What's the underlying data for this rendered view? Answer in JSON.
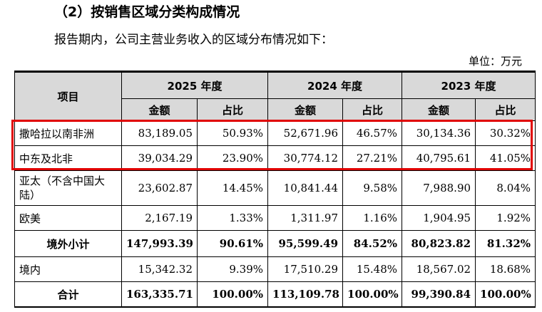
{
  "heading": "（2）按销售区域分类构成情况",
  "intro": "报告期内，公司主营业务收入的区域分布情况如下：",
  "unit": "单位：万元",
  "table": {
    "item_header": "项目",
    "years": [
      "2025 年度",
      "2024 年度",
      "2023 年度"
    ],
    "amount_label": "金额",
    "ratio_label": "占比",
    "rows": [
      {
        "label": "撒哈拉以南非洲",
        "values": [
          "83,189.05",
          "50.93%",
          "52,671.96",
          "46.57%",
          "30,134.36",
          "30.32%"
        ]
      },
      {
        "label": "中东及北非",
        "values": [
          "39,034.29",
          "23.90%",
          "30,774.12",
          "27.21%",
          "40,795.61",
          "41.05%"
        ]
      },
      {
        "label": "亚太（不含中国大陆）",
        "values": [
          "23,602.87",
          "14.45%",
          "10,841.44",
          "9.58%",
          "7,988.90",
          "8.04%"
        ]
      },
      {
        "label": "欧美",
        "values": [
          "2,167.19",
          "1.33%",
          "1,311.97",
          "1.16%",
          "1,904.95",
          "1.92%"
        ]
      },
      {
        "label": "境外小计",
        "values": [
          "147,993.39",
          "90.61%",
          "95,599.49",
          "84.52%",
          "80,823.82",
          "81.32%"
        ]
      },
      {
        "label": "境内",
        "values": [
          "15,342.32",
          "9.39%",
          "17,510.29",
          "15.48%",
          "18,567.02",
          "18.68%"
        ]
      },
      {
        "label": "合计",
        "values": [
          "163,335.71",
          "100.00%",
          "113,109.78",
          "100.00%",
          "99,390.84",
          "100.00%"
        ]
      }
    ]
  },
  "highlight_color": "#e00000"
}
